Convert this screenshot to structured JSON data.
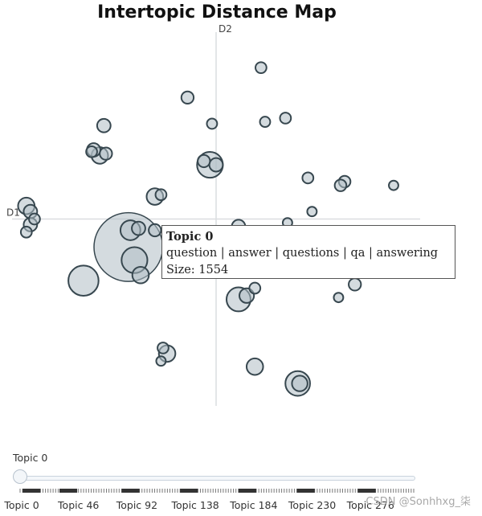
{
  "chart_data": {
    "type": "scatter",
    "title": "Intertopic Distance Map",
    "xlabel": "D1",
    "ylabel": "D2",
    "xlim": [
      -1,
      1
    ],
    "ylim": [
      -1,
      1
    ],
    "grid": false,
    "points": [
      {
        "x": 0.22,
        "y": 0.81,
        "size": 40
      },
      {
        "x": -0.14,
        "y": 0.65,
        "size": 50
      },
      {
        "x": -0.02,
        "y": 0.51,
        "size": 35
      },
      {
        "x": 0.24,
        "y": 0.52,
        "size": 35
      },
      {
        "x": 0.34,
        "y": 0.54,
        "size": 40
      },
      {
        "x": -0.55,
        "y": 0.5,
        "size": 60
      },
      {
        "x": -0.6,
        "y": 0.37,
        "size": 60
      },
      {
        "x": -0.57,
        "y": 0.34,
        "size": 90
      },
      {
        "x": -0.54,
        "y": 0.35,
        "size": 50
      },
      {
        "x": -0.61,
        "y": 0.36,
        "size": 40
      },
      {
        "x": -0.03,
        "y": 0.29,
        "size": 220
      },
      {
        "x": 0.0,
        "y": 0.29,
        "size": 60
      },
      {
        "x": -0.06,
        "y": 0.31,
        "size": 50
      },
      {
        "x": 0.45,
        "y": 0.22,
        "size": 40
      },
      {
        "x": 0.63,
        "y": 0.2,
        "size": 45
      },
      {
        "x": 0.61,
        "y": 0.18,
        "size": 45
      },
      {
        "x": 0.87,
        "y": 0.18,
        "size": 30
      },
      {
        "x": -0.3,
        "y": 0.12,
        "size": 90
      },
      {
        "x": -0.27,
        "y": 0.13,
        "size": 40
      },
      {
        "x": -0.93,
        "y": 0.07,
        "size": 90
      },
      {
        "x": -0.91,
        "y": 0.04,
        "size": 60
      },
      {
        "x": -0.89,
        "y": 0.0,
        "size": 40
      },
      {
        "x": -0.91,
        "y": -0.03,
        "size": 60
      },
      {
        "x": -0.93,
        "y": -0.07,
        "size": 40
      },
      {
        "x": 0.47,
        "y": 0.04,
        "size": 30
      },
      {
        "x": 0.35,
        "y": -0.02,
        "size": 30
      },
      {
        "x": 0.11,
        "y": -0.04,
        "size": 60
      },
      {
        "x": -0.42,
        "y": -0.06,
        "size": 130
      },
      {
        "x": -0.38,
        "y": -0.05,
        "size": 60
      },
      {
        "x": -0.3,
        "y": -0.06,
        "size": 50
      },
      {
        "x": -0.43,
        "y": -0.15,
        "size": 1554
      },
      {
        "x": -0.4,
        "y": -0.22,
        "size": 220
      },
      {
        "x": -0.37,
        "y": -0.3,
        "size": 90
      },
      {
        "x": -0.65,
        "y": -0.33,
        "size": 300
      },
      {
        "x": 0.68,
        "y": -0.35,
        "size": 50
      },
      {
        "x": 0.19,
        "y": -0.37,
        "size": 40
      },
      {
        "x": 0.11,
        "y": -0.43,
        "size": 190
      },
      {
        "x": 0.15,
        "y": -0.41,
        "size": 70
      },
      {
        "x": 0.6,
        "y": -0.42,
        "size": 30
      },
      {
        "x": -0.24,
        "y": -0.72,
        "size": 90
      },
      {
        "x": -0.26,
        "y": -0.69,
        "size": 40
      },
      {
        "x": -0.27,
        "y": -0.76,
        "size": 30
      },
      {
        "x": 0.19,
        "y": -0.79,
        "size": 90
      },
      {
        "x": 0.4,
        "y": -0.88,
        "size": 200
      },
      {
        "x": 0.41,
        "y": -0.88,
        "size": 80
      }
    ],
    "hover": {
      "title": "Topic 0",
      "words": "question | answer | questions | qa | answering",
      "size_text": "Size: 1554"
    },
    "slider": {
      "current_label": "Topic 0",
      "ticks": [
        "Topic 0",
        "Topic 46",
        "Topic 92",
        "Topic 138",
        "Topic 184",
        "Topic 230",
        "Topic 276"
      ],
      "max": 310,
      "value": 0
    }
  },
  "watermark": "CSDN @Sonhhxg_柒",
  "colors": {
    "bubble_fill": "#b0bec5",
    "bubble_stroke": "#37474f",
    "axis_line": "#dadde0",
    "tooltip_border": "#555555"
  }
}
